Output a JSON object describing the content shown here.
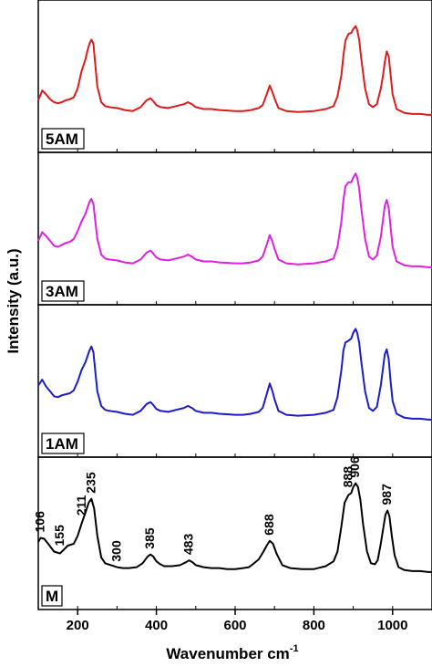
{
  "chart_data": {
    "type": "line",
    "xlabel": "Wavenumber cm",
    "xlabel_superscript": "-1",
    "ylabel": "Intensity (a.u.)",
    "xlim": [
      100,
      1100
    ],
    "xticks": [
      200,
      400,
      600,
      800,
      1000
    ],
    "grid": false,
    "series": [
      {
        "name": "5AM",
        "color": "#dd1c1c",
        "x": [
          100,
          110,
          120,
          130,
          140,
          150,
          160,
          170,
          180,
          190,
          200,
          210,
          215,
          220,
          225,
          230,
          235,
          240,
          245,
          250,
          260,
          270,
          280,
          300,
          320,
          340,
          360,
          375,
          385,
          390,
          400,
          410,
          430,
          450,
          470,
          480,
          490,
          500,
          520,
          540,
          560,
          600,
          620,
          640,
          660,
          670,
          680,
          688,
          695,
          700,
          710,
          730,
          760,
          800,
          830,
          850,
          860,
          870,
          875,
          880,
          888,
          895,
          900,
          906,
          910,
          915,
          920,
          930,
          940,
          950,
          960,
          970,
          975,
          980,
          985,
          990,
          995,
          1000,
          1010,
          1030,
          1050,
          1070,
          1090,
          1100
        ],
        "y": [
          0.16,
          0.26,
          0.22,
          0.17,
          0.14,
          0.13,
          0.14,
          0.16,
          0.17,
          0.19,
          0.28,
          0.46,
          0.52,
          0.58,
          0.67,
          0.74,
          0.78,
          0.74,
          0.52,
          0.3,
          0.14,
          0.1,
          0.09,
          0.08,
          0.06,
          0.05,
          0.09,
          0.16,
          0.18,
          0.16,
          0.11,
          0.09,
          0.08,
          0.1,
          0.12,
          0.14,
          0.12,
          0.09,
          0.07,
          0.07,
          0.06,
          0.05,
          0.05,
          0.06,
          0.08,
          0.11,
          0.22,
          0.31,
          0.24,
          0.18,
          0.08,
          0.05,
          0.04,
          0.05,
          0.07,
          0.1,
          0.2,
          0.42,
          0.62,
          0.77,
          0.84,
          0.85,
          0.89,
          0.92,
          0.88,
          0.78,
          0.6,
          0.28,
          0.12,
          0.09,
          0.12,
          0.28,
          0.4,
          0.55,
          0.66,
          0.61,
          0.42,
          0.22,
          0.07,
          0.03,
          0.02,
          0.02,
          0.01,
          0.01
        ]
      },
      {
        "name": "3AM",
        "color": "#e020e0",
        "x": [
          100,
          110,
          120,
          130,
          140,
          150,
          160,
          170,
          180,
          190,
          200,
          210,
          215,
          220,
          225,
          230,
          235,
          240,
          245,
          250,
          260,
          270,
          280,
          300,
          320,
          340,
          360,
          375,
          385,
          390,
          400,
          410,
          430,
          450,
          470,
          480,
          490,
          500,
          520,
          540,
          560,
          600,
          620,
          640,
          660,
          670,
          680,
          688,
          695,
          700,
          710,
          730,
          760,
          800,
          830,
          850,
          860,
          870,
          875,
          880,
          888,
          895,
          900,
          906,
          910,
          915,
          920,
          930,
          940,
          950,
          960,
          970,
          975,
          980,
          985,
          990,
          995,
          1000,
          1010,
          1030,
          1050,
          1070,
          1090,
          1100
        ],
        "y": [
          0.28,
          0.37,
          0.33,
          0.28,
          0.23,
          0.22,
          0.24,
          0.26,
          0.27,
          0.3,
          0.38,
          0.48,
          0.52,
          0.56,
          0.62,
          0.68,
          0.71,
          0.66,
          0.48,
          0.3,
          0.14,
          0.1,
          0.09,
          0.08,
          0.06,
          0.05,
          0.09,
          0.16,
          0.18,
          0.16,
          0.11,
          0.09,
          0.08,
          0.1,
          0.12,
          0.14,
          0.12,
          0.09,
          0.07,
          0.07,
          0.06,
          0.05,
          0.05,
          0.06,
          0.08,
          0.12,
          0.24,
          0.34,
          0.27,
          0.2,
          0.09,
          0.05,
          0.04,
          0.05,
          0.07,
          0.1,
          0.22,
          0.48,
          0.7,
          0.84,
          0.88,
          0.88,
          0.93,
          0.97,
          0.93,
          0.82,
          0.63,
          0.3,
          0.12,
          0.09,
          0.13,
          0.32,
          0.48,
          0.64,
          0.7,
          0.62,
          0.42,
          0.22,
          0.07,
          0.03,
          0.02,
          0.02,
          0.01,
          0.01
        ]
      },
      {
        "name": "1AM",
        "color": "#1c1cc8",
        "x": [
          100,
          110,
          120,
          130,
          140,
          150,
          160,
          170,
          180,
          190,
          200,
          210,
          215,
          220,
          225,
          230,
          235,
          240,
          245,
          250,
          260,
          270,
          280,
          300,
          320,
          340,
          360,
          375,
          385,
          390,
          400,
          410,
          430,
          450,
          470,
          480,
          490,
          500,
          520,
          540,
          560,
          600,
          620,
          640,
          660,
          670,
          680,
          688,
          695,
          700,
          710,
          730,
          760,
          800,
          830,
          850,
          860,
          870,
          875,
          880,
          888,
          895,
          900,
          906,
          910,
          915,
          920,
          930,
          940,
          950,
          960,
          970,
          975,
          980,
          985,
          990,
          995,
          1000,
          1010,
          1030,
          1050,
          1070,
          1090,
          1100
        ],
        "y": [
          0.36,
          0.42,
          0.35,
          0.3,
          0.25,
          0.24,
          0.26,
          0.27,
          0.28,
          0.31,
          0.4,
          0.52,
          0.56,
          0.6,
          0.66,
          0.72,
          0.76,
          0.7,
          0.5,
          0.3,
          0.15,
          0.11,
          0.1,
          0.09,
          0.07,
          0.06,
          0.1,
          0.17,
          0.19,
          0.17,
          0.12,
          0.1,
          0.09,
          0.11,
          0.13,
          0.15,
          0.13,
          0.1,
          0.08,
          0.08,
          0.07,
          0.06,
          0.06,
          0.07,
          0.09,
          0.13,
          0.27,
          0.38,
          0.3,
          0.22,
          0.1,
          0.06,
          0.05,
          0.06,
          0.08,
          0.11,
          0.24,
          0.52,
          0.72,
          0.8,
          0.82,
          0.84,
          0.9,
          0.94,
          0.9,
          0.8,
          0.62,
          0.3,
          0.13,
          0.1,
          0.14,
          0.36,
          0.52,
          0.68,
          0.73,
          0.63,
          0.4,
          0.2,
          0.07,
          0.03,
          0.02,
          0.02,
          0.01,
          0.01
        ]
      },
      {
        "name": "M",
        "color": "#000000",
        "x": [
          100,
          106,
          115,
          125,
          140,
          155,
          165,
          175,
          190,
          200,
          211,
          220,
          228,
          235,
          242,
          250,
          260,
          270,
          285,
          300,
          315,
          330,
          350,
          365,
          378,
          385,
          392,
          400,
          410,
          420,
          440,
          460,
          475,
          483,
          492,
          500,
          520,
          540,
          560,
          580,
          600,
          620,
          635,
          645,
          660,
          672,
          680,
          688,
          696,
          705,
          720,
          740,
          770,
          800,
          830,
          850,
          860,
          870,
          878,
          888,
          895,
          900,
          906,
          912,
          918,
          925,
          935,
          945,
          955,
          962,
          970,
          977,
          982,
          987,
          992,
          998,
          1005,
          1015,
          1030,
          1050,
          1070,
          1090,
          1100
        ],
        "y": [
          0.32,
          0.36,
          0.35,
          0.3,
          0.22,
          0.2,
          0.24,
          0.28,
          0.3,
          0.38,
          0.52,
          0.62,
          0.72,
          0.76,
          0.66,
          0.38,
          0.16,
          0.1,
          0.08,
          0.06,
          0.05,
          0.05,
          0.06,
          0.1,
          0.17,
          0.19,
          0.17,
          0.12,
          0.09,
          0.07,
          0.07,
          0.08,
          0.11,
          0.13,
          0.11,
          0.08,
          0.06,
          0.05,
          0.05,
          0.04,
          0.04,
          0.05,
          0.06,
          0.09,
          0.14,
          0.22,
          0.28,
          0.33,
          0.3,
          0.2,
          0.08,
          0.05,
          0.04,
          0.04,
          0.07,
          0.12,
          0.22,
          0.48,
          0.72,
          0.8,
          0.82,
          0.88,
          0.92,
          0.88,
          0.75,
          0.5,
          0.22,
          0.1,
          0.09,
          0.13,
          0.3,
          0.48,
          0.6,
          0.64,
          0.58,
          0.38,
          0.18,
          0.06,
          0.03,
          0.02,
          0.02,
          0.01,
          0.01
        ]
      }
    ],
    "peak_labels": [
      {
        "text": "106",
        "x": 106,
        "y": 0.36
      },
      {
        "text": "155",
        "x": 155,
        "y": 0.22
      },
      {
        "text": "211",
        "x": 211,
        "y": 0.53
      },
      {
        "text": "235",
        "x": 235,
        "y": 0.76
      },
      {
        "text": "300",
        "x": 300,
        "y": 0.06
      },
      {
        "text": "385",
        "x": 385,
        "y": 0.19
      },
      {
        "text": "483",
        "x": 483,
        "y": 0.13
      },
      {
        "text": "688",
        "x": 688,
        "y": 0.33
      },
      {
        "text": "888",
        "x": 888,
        "y": 0.82
      },
      {
        "text": "906",
        "x": 906,
        "y": 0.92
      },
      {
        "text": "987",
        "x": 987,
        "y": 0.64
      }
    ]
  }
}
